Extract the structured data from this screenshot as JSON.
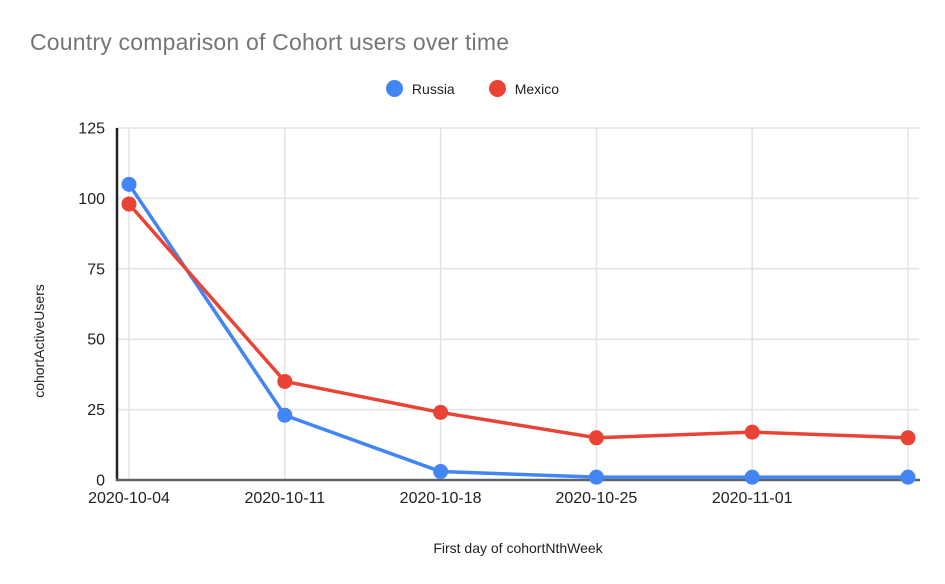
{
  "page": {
    "background": "#ffffff"
  },
  "chart_data": {
    "type": "line",
    "title": "Country comparison of Cohort users over time",
    "xlabel": "First day of cohortNthWeek",
    "ylabel": "cohortActiveUsers",
    "categories": [
      "2020-10-04",
      "2020-10-11",
      "2020-10-18",
      "2020-10-25",
      "2020-11-01",
      ""
    ],
    "series": [
      {
        "name": "Russia",
        "color": "#4285F4",
        "values": [
          105,
          23,
          3,
          1,
          1,
          1
        ]
      },
      {
        "name": "Mexico",
        "color": "#EA4335",
        "values": [
          98,
          35,
          24,
          15,
          17,
          15
        ]
      }
    ],
    "y_ticks": [
      0,
      25,
      50,
      75,
      100,
      125
    ],
    "ylim": [
      0,
      125
    ],
    "grid": true,
    "legend_position": "top",
    "marker": "circle"
  },
  "style_colors": {
    "title_text": "#757575",
    "tick_text": "#212121",
    "y_axis_line": "#212121",
    "x_axis_line": "#5f6368",
    "gridline": "#e3e3e3"
  }
}
